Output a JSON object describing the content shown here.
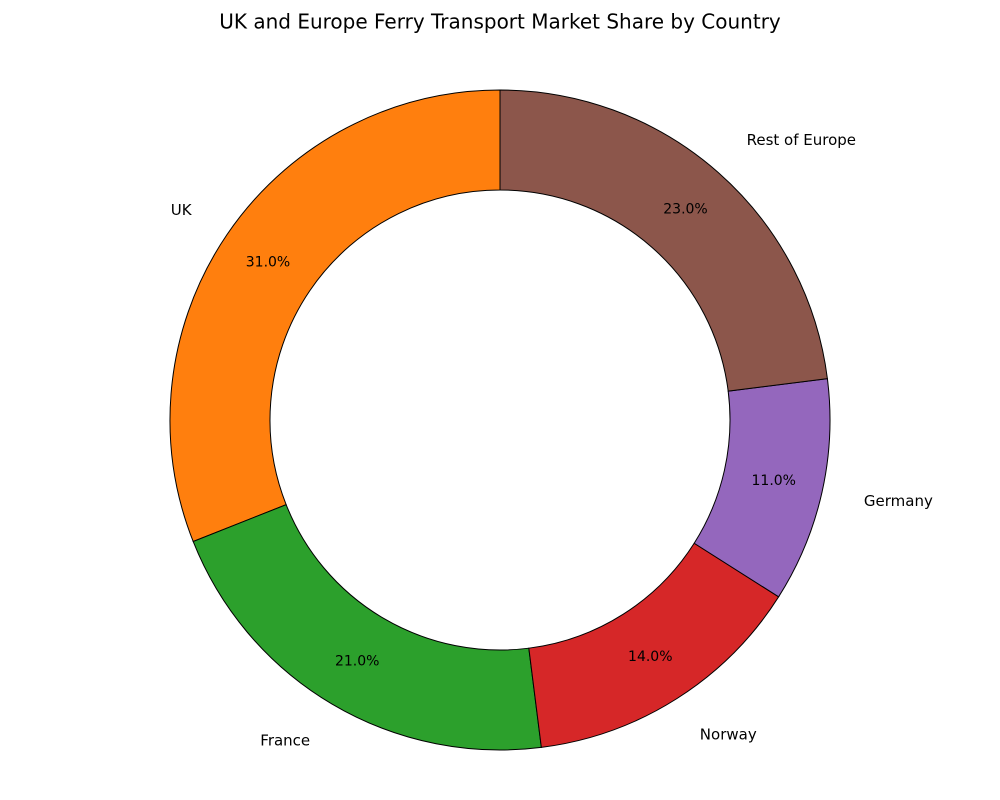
{
  "chart_data": {
    "type": "donut",
    "title": "UK and Europe Ferry Transport Market Share by Country",
    "categories": [
      "UK",
      "France",
      "Norway",
      "Germany",
      "Rest of Europe"
    ],
    "values": [
      31,
      21,
      14,
      11,
      23
    ],
    "value_labels": [
      "31.0%",
      "21.0%",
      "14.0%",
      "11.0%",
      "23.0%"
    ],
    "colors": [
      "#ff7f0e",
      "#2ca02c",
      "#d62728",
      "#9467bd",
      "#8c564b"
    ]
  }
}
